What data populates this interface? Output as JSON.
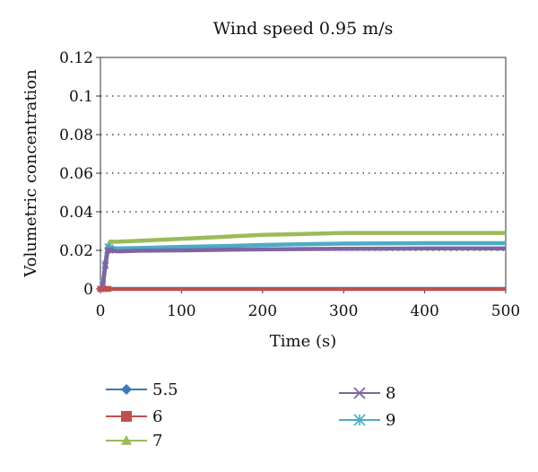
{
  "chart_data": {
    "type": "line",
    "title": "Wind speed 0.95 m/s",
    "xlabel": "Time (s)",
    "ylabel": "Volumetric concentration",
    "xlim": [
      0,
      500
    ],
    "ylim": [
      0,
      0.12
    ],
    "xticks": [
      0,
      100,
      200,
      300,
      400,
      500
    ],
    "yticks": [
      0,
      0.02,
      0.04,
      0.06,
      0.08,
      0.1,
      0.12
    ],
    "xtick_labels": [
      "0",
      "100",
      "200",
      "300",
      "400",
      "500"
    ],
    "ytick_labels": [
      "0",
      "0.02",
      "0.04",
      "0.06",
      "0.08",
      "0.1",
      "0.12"
    ],
    "grid": "horizontal-dotted",
    "legend_position": "bottom",
    "series": [
      {
        "name": "5.5",
        "color": "#3b78b8",
        "marker": "diamond",
        "x": [
          0,
          5,
          10,
          500
        ],
        "y": [
          0,
          0,
          0,
          0
        ]
      },
      {
        "name": "6",
        "color": "#c0504d",
        "marker": "square",
        "x": [
          0,
          5,
          10,
          500
        ],
        "y": [
          0,
          0,
          0,
          0
        ]
      },
      {
        "name": "7",
        "color": "#9bbb59",
        "marker": "triangle",
        "x": [
          0,
          3,
          6,
          9,
          12,
          20,
          50,
          100,
          150,
          200,
          250,
          300,
          350,
          400,
          450,
          500
        ],
        "y": [
          0,
          0.002,
          0.012,
          0.022,
          0.0245,
          0.0245,
          0.025,
          0.026,
          0.027,
          0.028,
          0.0285,
          0.029,
          0.029,
          0.029,
          0.029,
          0.029
        ]
      },
      {
        "name": "8",
        "color": "#8064a2",
        "marker": "x",
        "x": [
          0,
          3,
          6,
          9,
          12,
          20,
          50,
          100,
          150,
          200,
          250,
          300,
          350,
          400,
          450,
          500
        ],
        "y": [
          0,
          0.002,
          0.012,
          0.02,
          0.02,
          0.0195,
          0.0198,
          0.02,
          0.0203,
          0.0205,
          0.0207,
          0.0208,
          0.0209,
          0.021,
          0.021,
          0.021
        ]
      },
      {
        "name": "9",
        "color": "#4bacc6",
        "marker": "asterisk",
        "x": [
          0,
          3,
          6,
          9,
          12,
          20,
          50,
          100,
          150,
          200,
          250,
          300,
          350,
          400,
          450,
          500
        ],
        "y": [
          0,
          0.003,
          0.013,
          0.022,
          0.0215,
          0.021,
          0.0212,
          0.0218,
          0.0222,
          0.0228,
          0.0232,
          0.0235,
          0.0236,
          0.0237,
          0.0237,
          0.0237
        ]
      }
    ]
  }
}
